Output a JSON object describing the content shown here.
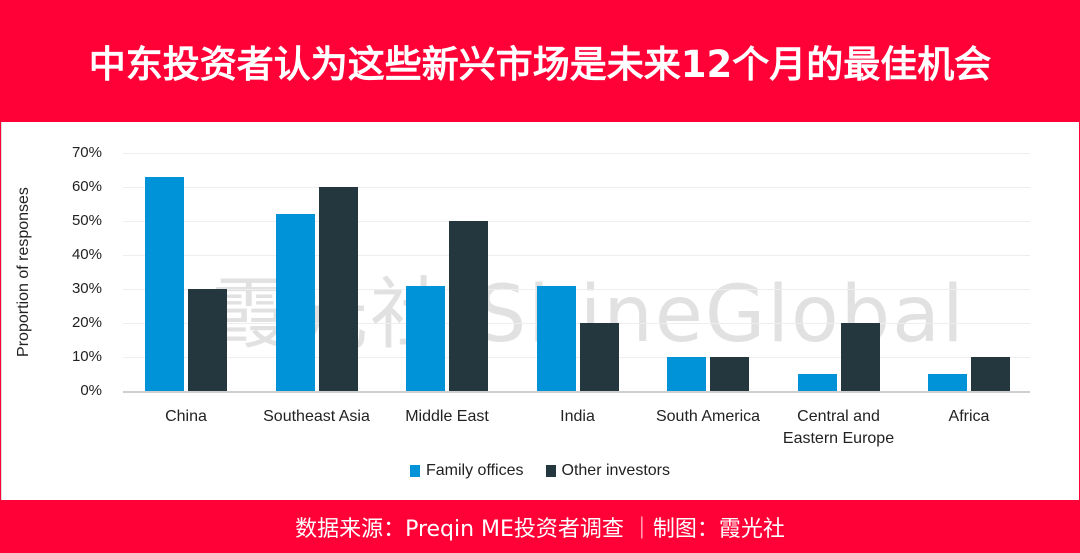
{
  "header": {
    "title": "中东投资者认为这些新兴市场是未来12个月的最佳机会"
  },
  "footer": {
    "source": "数据来源：Preqin ME投资者调查 ｜制图：霞光社"
  },
  "watermark": {
    "text": "霞光社 ShineGlobal"
  },
  "colors": {
    "brand_red": "#ff0037",
    "family_offices": "#0093d8",
    "other_investors": "#24363e"
  },
  "chart_data": {
    "type": "bar",
    "title": "中东投资者认为这些新兴市场是未来12个月的最佳机会",
    "xlabel": "",
    "ylabel": "Proportion of responses",
    "ylim": [
      0,
      70
    ],
    "yticks": [
      "0%",
      "10%",
      "20%",
      "30%",
      "40%",
      "50%",
      "60%",
      "70%"
    ],
    "grid": true,
    "legend_position": "bottom",
    "categories": [
      "China",
      "Southeast Asia",
      "Middle East",
      "India",
      "South America",
      "Central and Eastern Europe",
      "Africa"
    ],
    "category_labels": [
      [
        "China"
      ],
      [
        "Southeast Asia"
      ],
      [
        "Middle East"
      ],
      [
        "India"
      ],
      [
        "South America"
      ],
      [
        "Central and",
        "Eastern Europe"
      ],
      [
        "Africa"
      ]
    ],
    "series": [
      {
        "name": "Family offices",
        "color": "#0093d8",
        "values": [
          63,
          52,
          31,
          31,
          10,
          5,
          5
        ]
      },
      {
        "name": "Other investors",
        "color": "#24363e",
        "values": [
          30,
          60,
          50,
          20,
          10,
          20,
          10
        ]
      }
    ]
  }
}
